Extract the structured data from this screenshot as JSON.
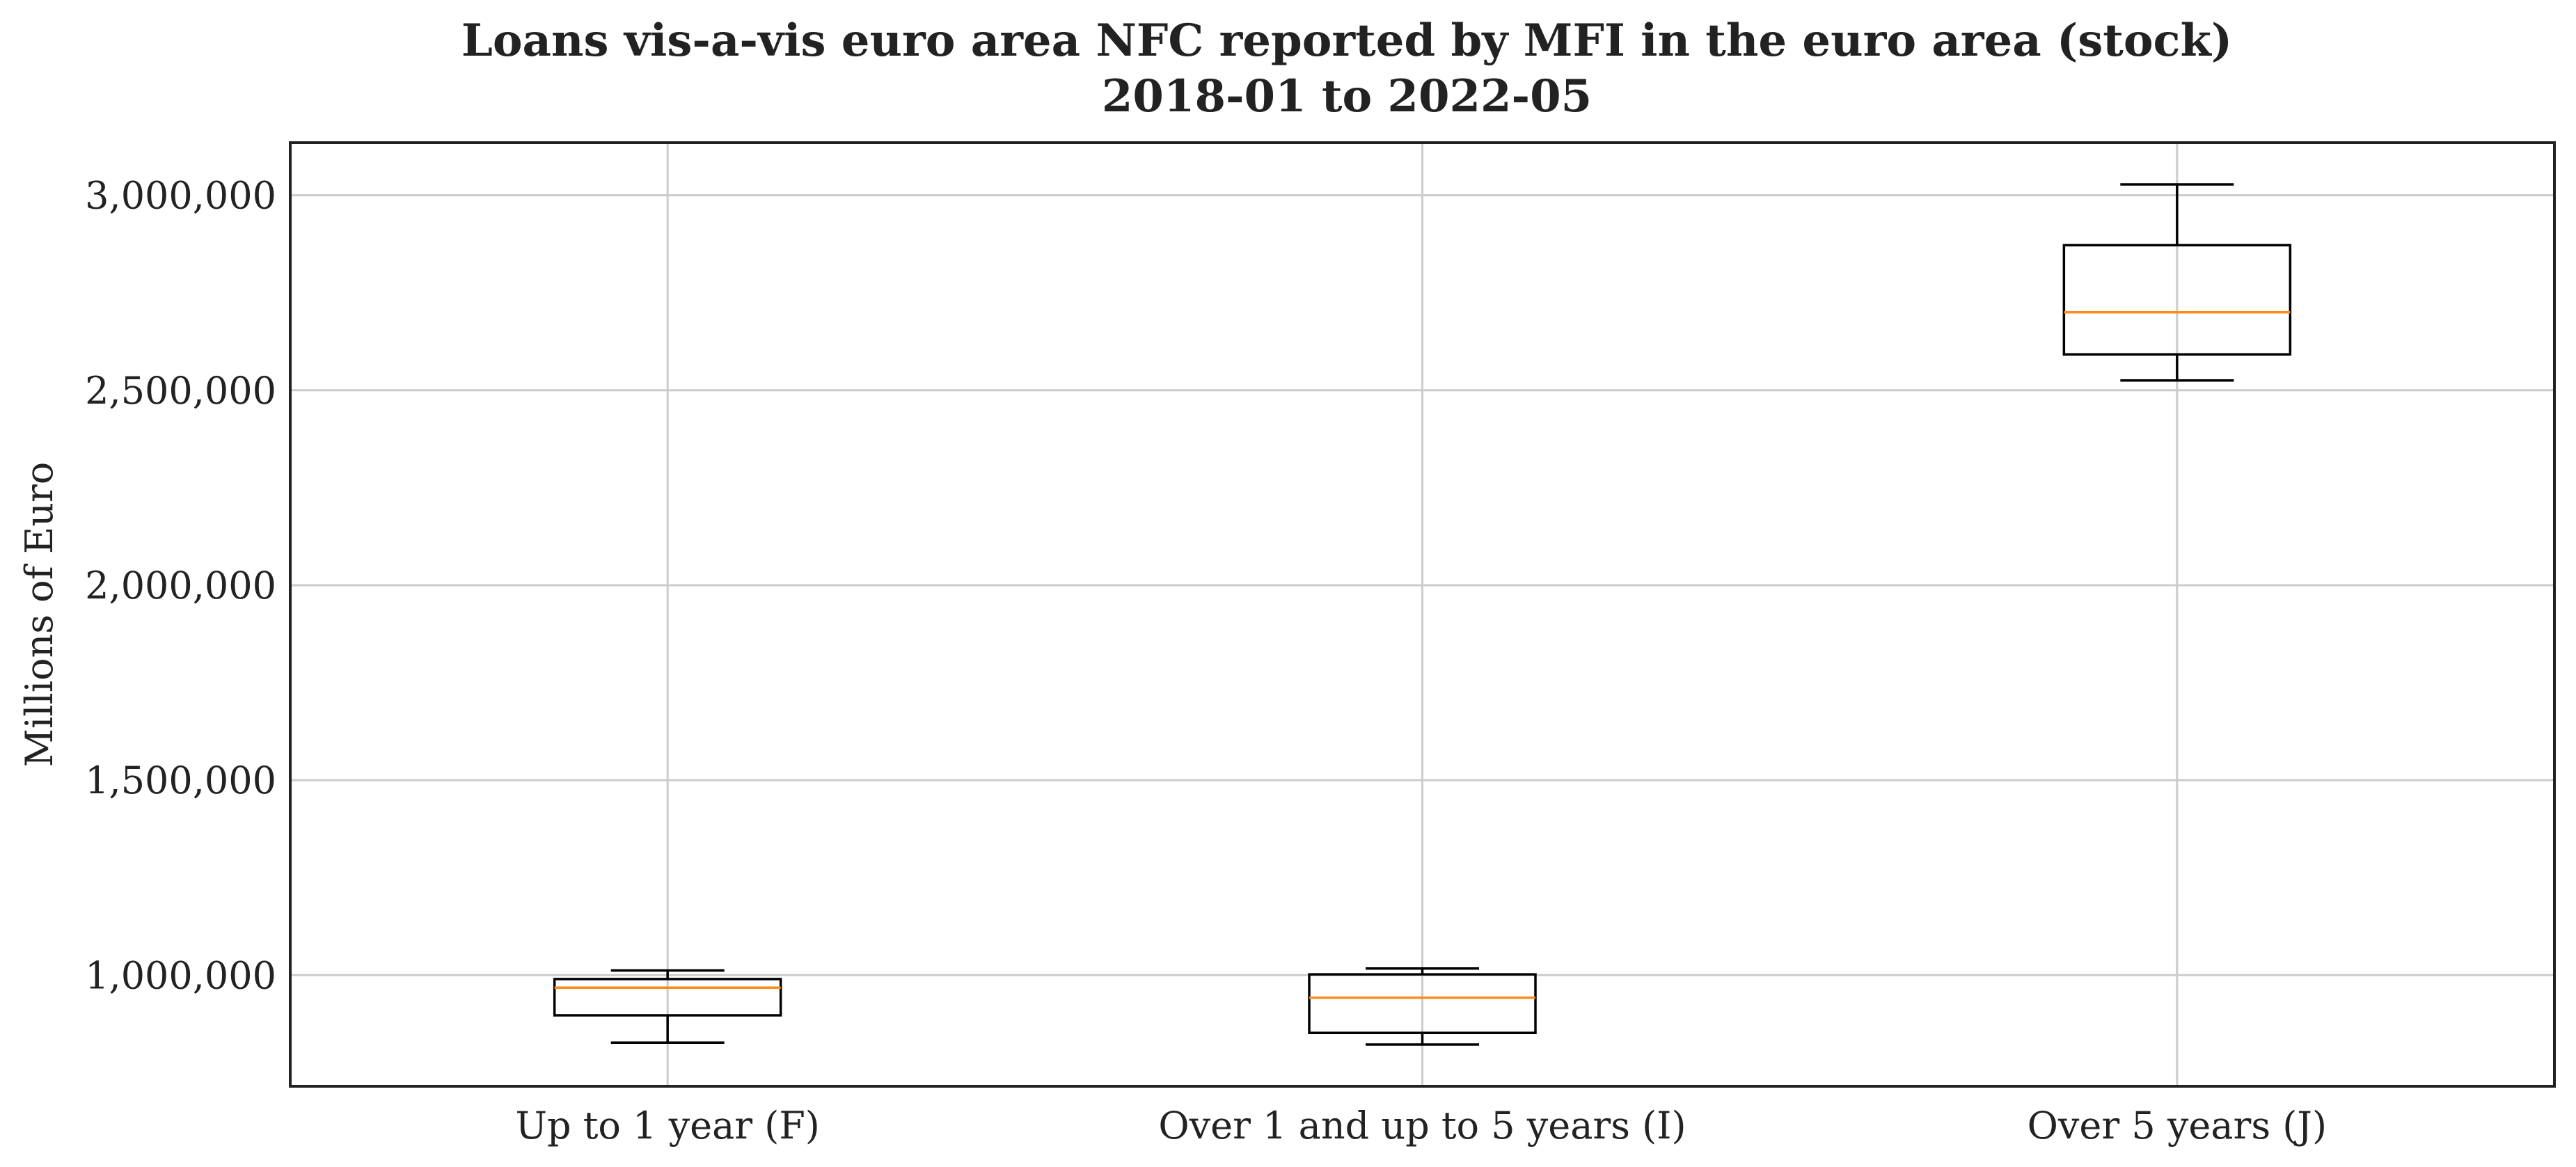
{
  "chart_data": {
    "type": "box",
    "title": "Loans vis-a-vis euro area NFC reported by MFI in the euro area (stock)",
    "subtitle": "2018-01 to 2022-05",
    "xlabel": "",
    "ylabel": "Millions of Euro",
    "ylim": [
      715000,
      3135000
    ],
    "yticks": [
      1000000,
      1500000,
      2000000,
      2500000,
      3000000
    ],
    "ytick_labels": [
      "1,000,000",
      "1,500,000",
      "2,000,000",
      "2,500,000",
      "3,000,000"
    ],
    "grid": true,
    "categories": [
      "Up to 1 year (F)",
      "Over 1 and up to 5 years (I)",
      "Over 5 years (J)"
    ],
    "boxes": [
      {
        "category": "Up to 1 year (F)",
        "whisker_low": 827000,
        "q1": 897000,
        "median": 968000,
        "q3": 990000,
        "whisker_high": 1012000
      },
      {
        "category": "Over 1 and up to 5 years (I)",
        "whisker_low": 822000,
        "q1": 852000,
        "median": 942000,
        "q3": 1002000,
        "whisker_high": 1017000
      },
      {
        "category": "Over 5 years (J)",
        "whisker_low": 2525000,
        "q1": 2592000,
        "median": 2700000,
        "q3": 2872000,
        "whisker_high": 3028000
      }
    ],
    "colors": {
      "box": "#000000",
      "median": "#ff8c1a",
      "grid": "#cccccc"
    }
  }
}
